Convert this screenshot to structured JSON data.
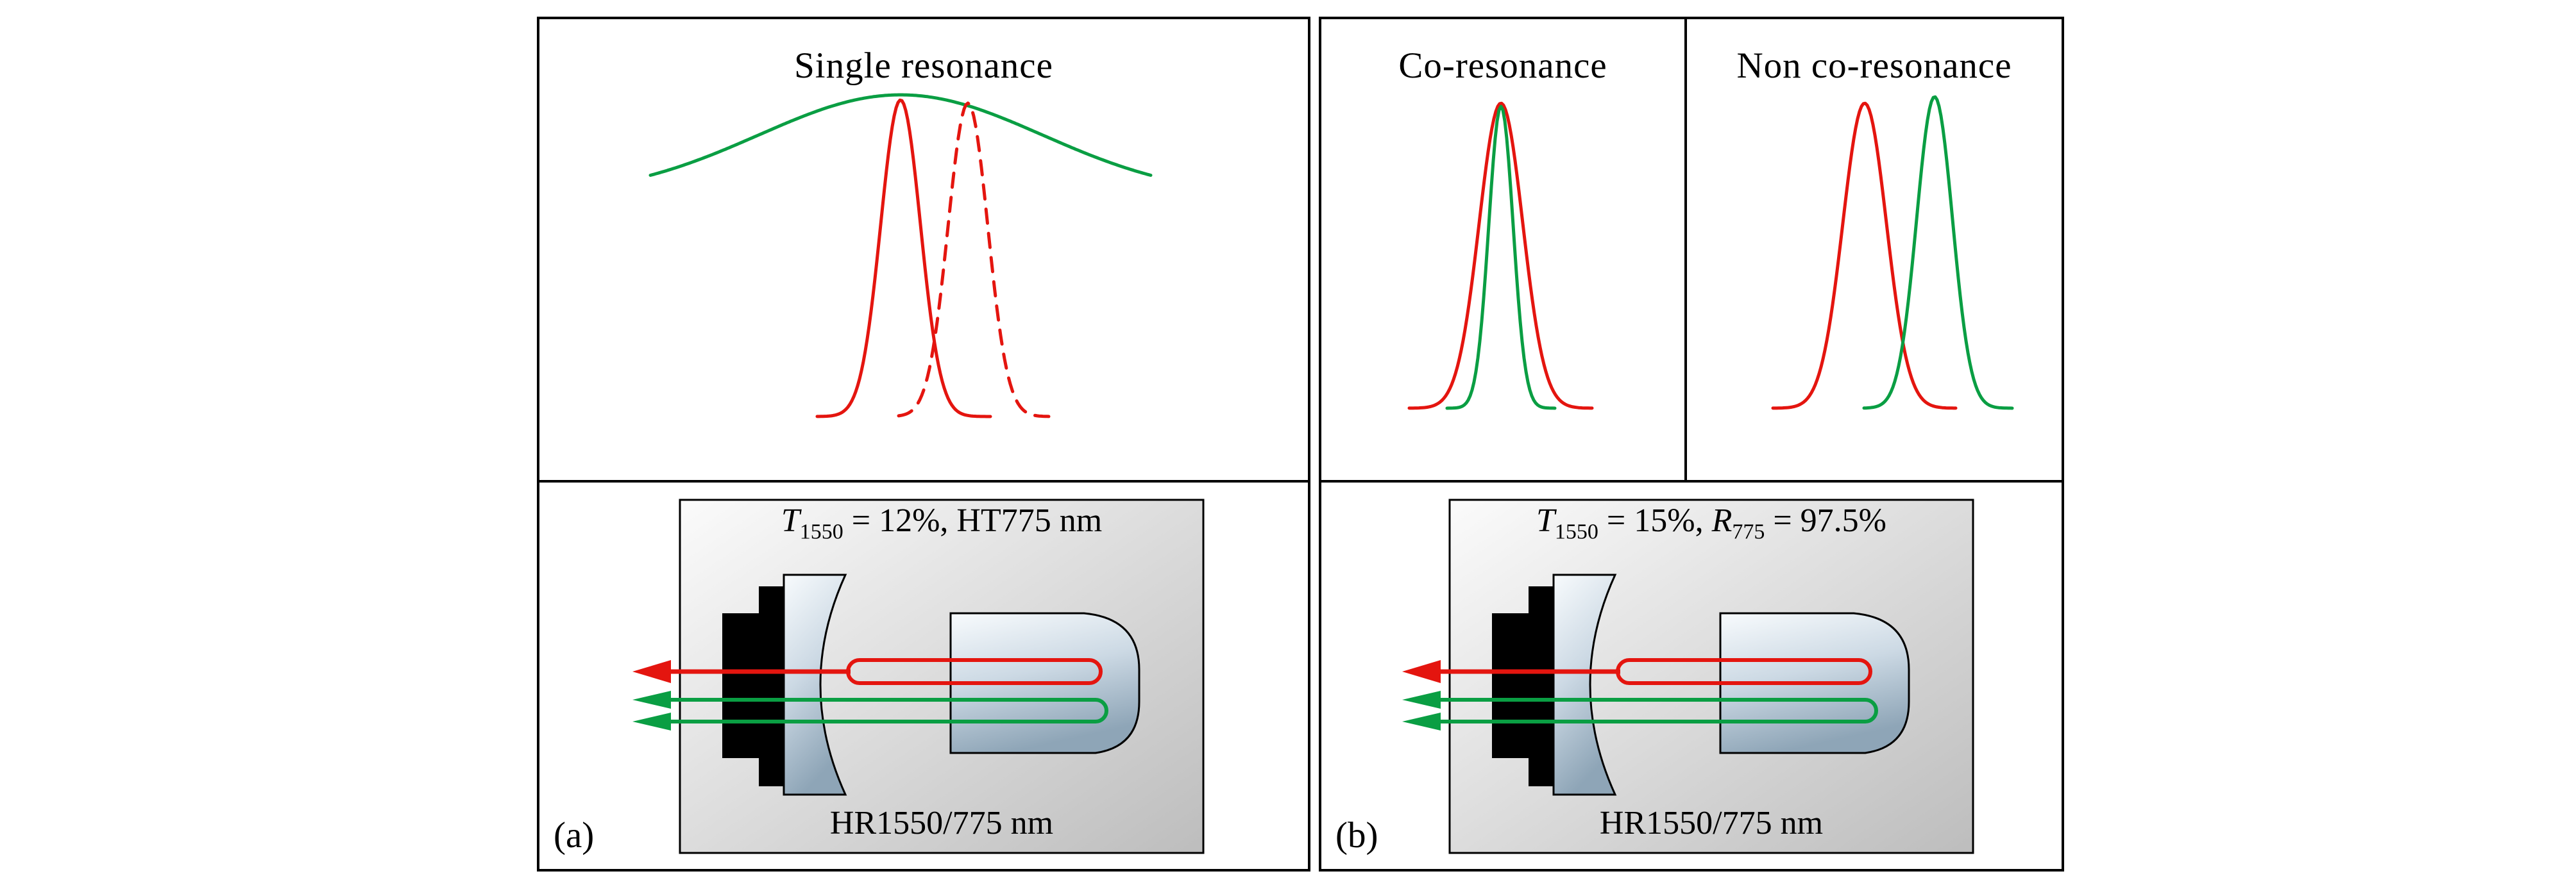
{
  "colors": {
    "red": "#e4150f",
    "green": "#0a9e43",
    "outline": "#000000"
  },
  "panels": {
    "single": {
      "title": "Single resonance"
    },
    "co": {
      "title": "Co-resonance"
    },
    "non_co": {
      "title": "Non co-resonance"
    },
    "a": {
      "tag": "(a)",
      "coupler": {
        "var1": "T",
        "sub1": "1550",
        "mid": " = 12%, HT775 nm",
        "var2": "",
        "sub2": "",
        "end": ""
      },
      "mirror_label": "HR1550/775 nm"
    },
    "b": {
      "tag": "(b)",
      "coupler": {
        "var1": "T",
        "sub1": "1550",
        "mid": " = 15%, ",
        "var2": "R",
        "sub2": "775",
        "end": " = 97.5%"
      },
      "mirror_label": "HR1550/775 nm"
    }
  },
  "chart_data": [
    {
      "type": "line",
      "title": "Single resonance",
      "axes": false,
      "note": "qualitative resonance peaks, no axes or tick labels",
      "series": [
        {
          "name": "broad-cavity-mode-775",
          "color": "#0a9e43",
          "style": "solid",
          "cx": 563,
          "sigma": 221,
          "base_y": 277,
          "peak_y": 118,
          "x_range": [
            173,
            953
          ]
        },
        {
          "name": "resonance-1550-solid",
          "color": "#e4150f",
          "style": "solid",
          "cx": 563,
          "sigma": 31,
          "base_y": 620,
          "peak_y": 126,
          "x_range": [
            433,
            705
          ]
        },
        {
          "name": "resonance-1550-shifted-dashed",
          "color": "#e4150f",
          "style": "dashed",
          "cx": 668,
          "sigma": 31,
          "base_y": 620,
          "peak_y": 131,
          "x_range": [
            560,
            795
          ]
        }
      ]
    },
    {
      "type": "line",
      "title": "Co-resonance",
      "axes": false,
      "series": [
        {
          "name": "resonance-1550",
          "color": "#e4150f",
          "style": "solid",
          "cx": 280,
          "sigma": 34,
          "base_y": 607,
          "peak_y": 131,
          "x_range": [
            137,
            423
          ]
        },
        {
          "name": "resonance-775",
          "color": "#0a9e43",
          "style": "solid",
          "cx": 280,
          "sigma": 19,
          "base_y": 607,
          "peak_y": 136,
          "x_range": [
            196,
            364
          ]
        }
      ]
    },
    {
      "type": "line",
      "title": "Non co-resonance",
      "axes": false,
      "series": [
        {
          "name": "resonance-1550",
          "color": "#e4150f",
          "style": "solid",
          "cx": 847,
          "sigma": 34,
          "base_y": 607,
          "peak_y": 131,
          "x_range": [
            704,
            990
          ]
        },
        {
          "name": "resonance-775",
          "color": "#0a9e43",
          "style": "solid",
          "cx": 956,
          "sigma": 28,
          "base_y": 607,
          "peak_y": 121,
          "x_range": [
            846,
            1078
          ]
        }
      ]
    }
  ]
}
